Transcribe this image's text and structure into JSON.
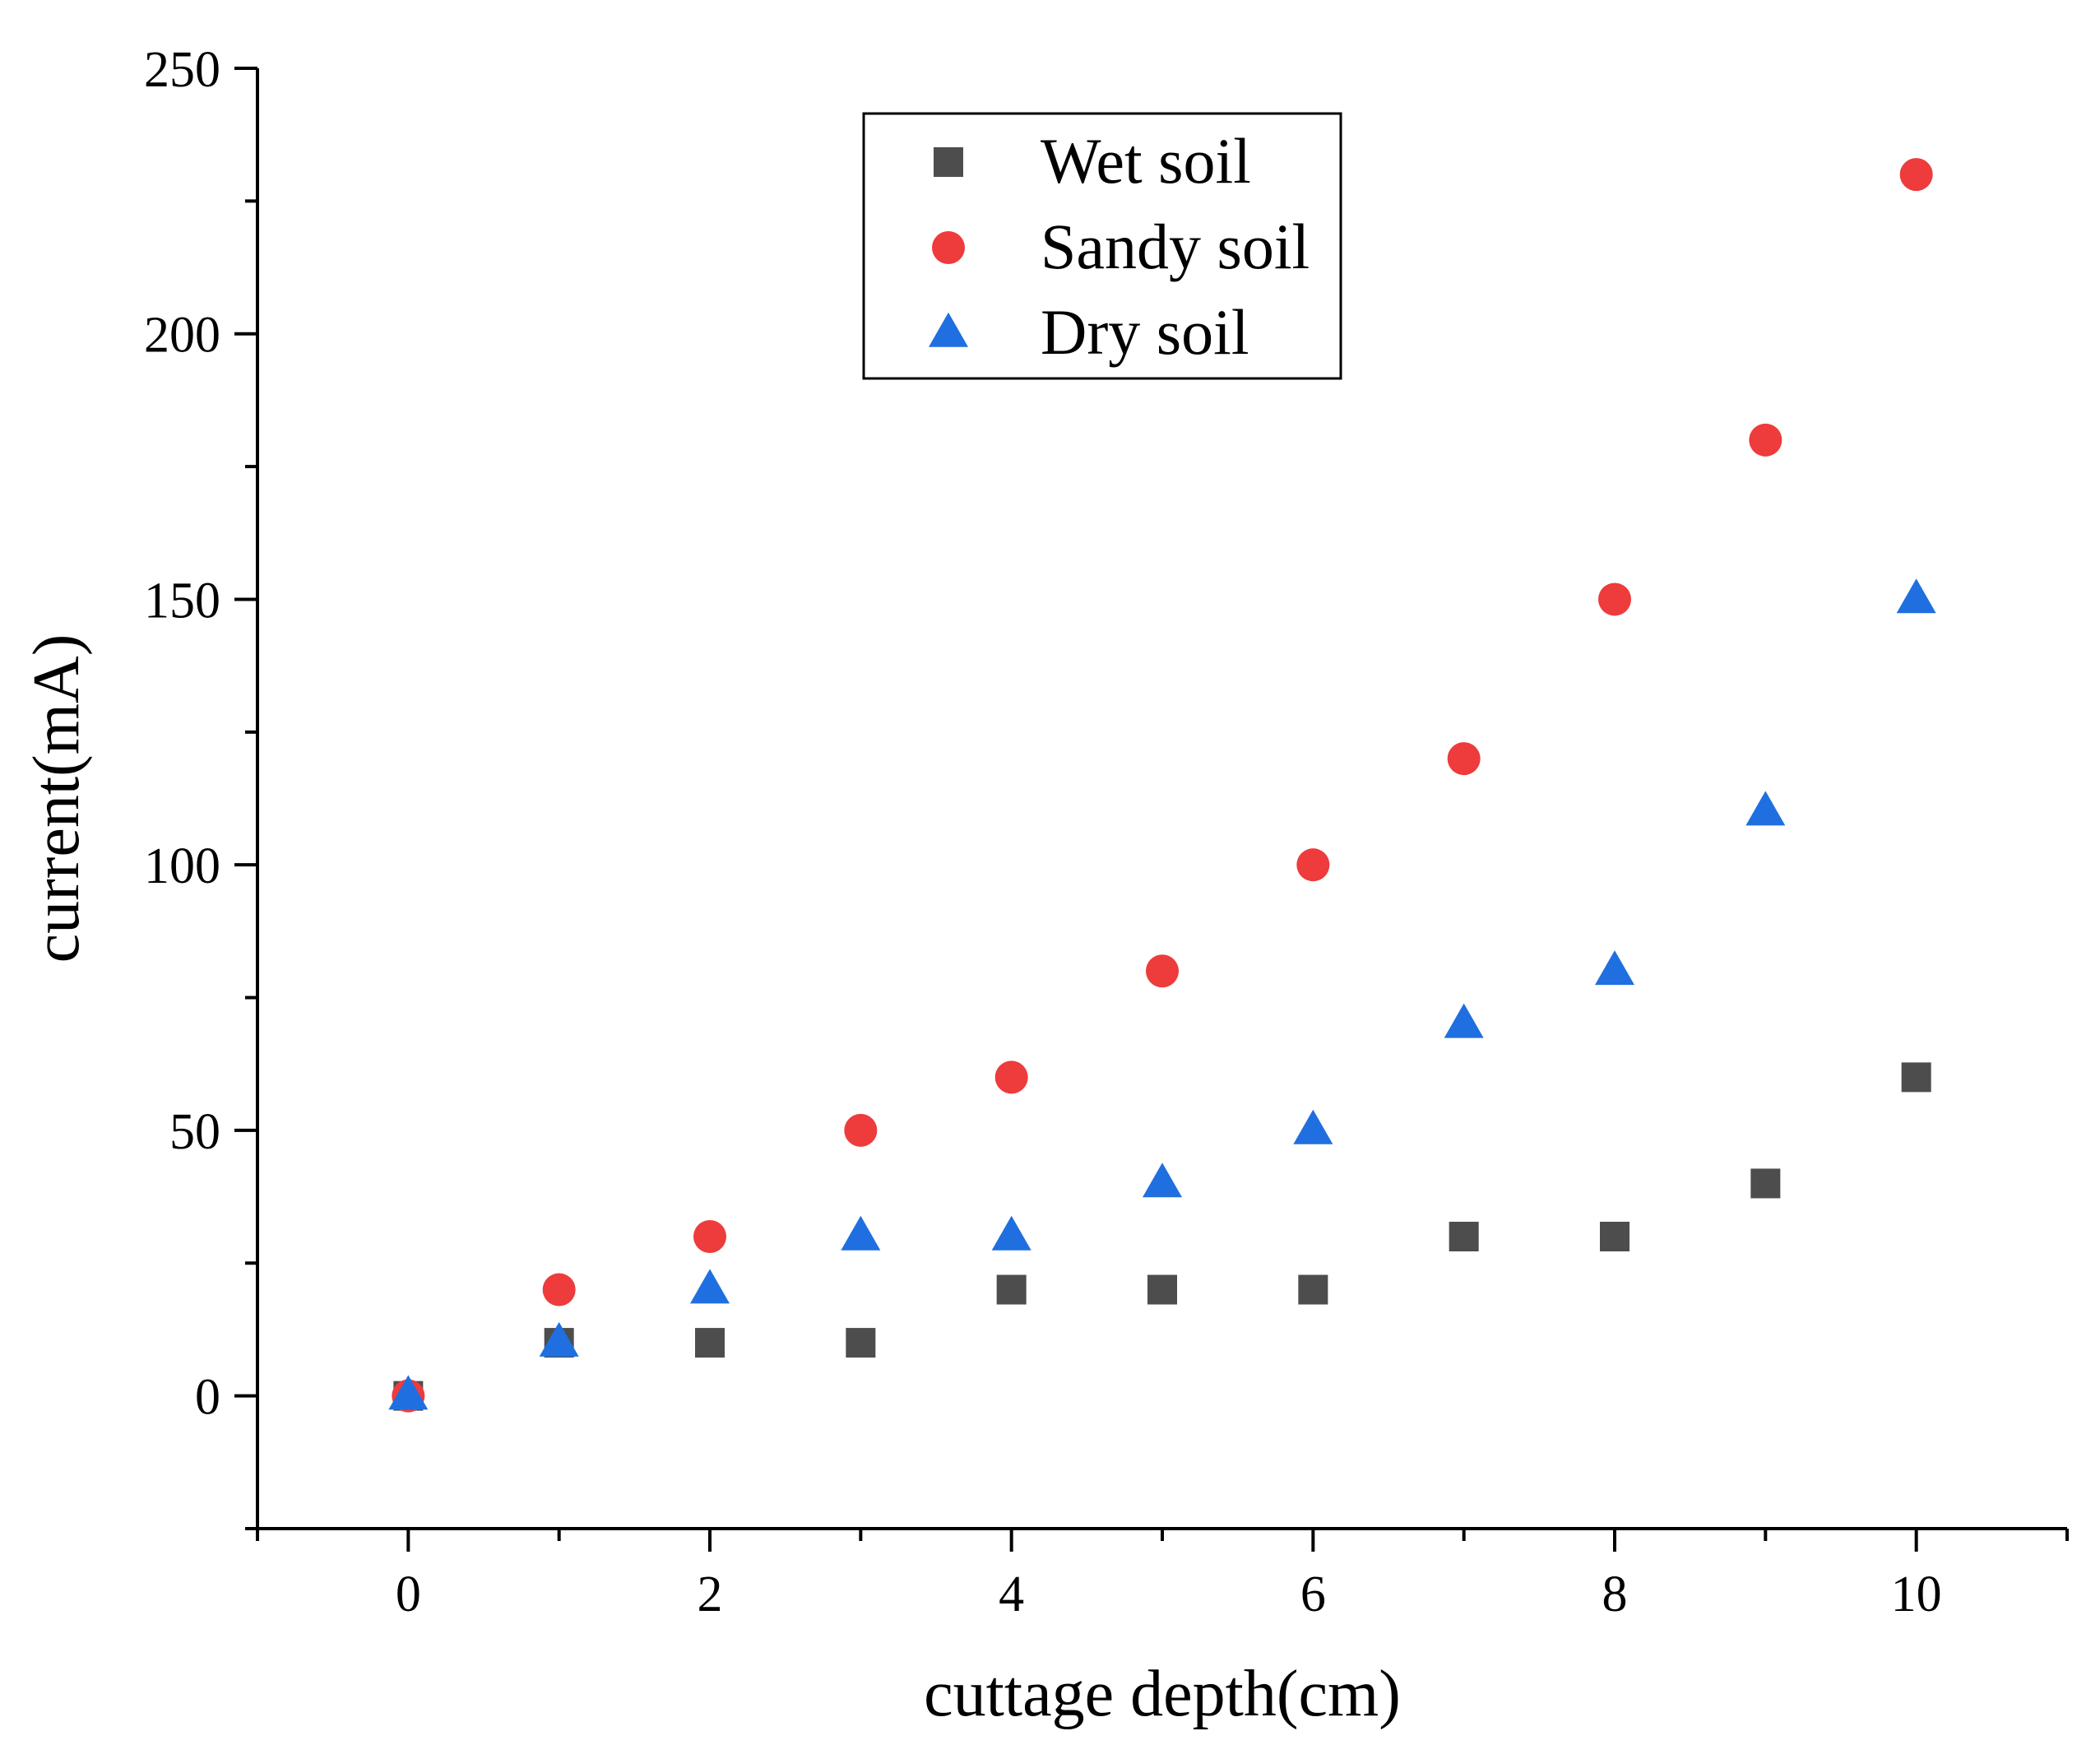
{
  "chart_data": {
    "type": "scatter",
    "title": "",
    "xlabel": "cuttage depth(cm)",
    "ylabel": "current(mA)",
    "xlim": [
      -1,
      11
    ],
    "ylim": [
      -25,
      250
    ],
    "xticks": [
      0,
      2,
      4,
      6,
      8,
      10
    ],
    "xtick_labels": [
      "0",
      "2",
      "4",
      "6",
      "8",
      "10"
    ],
    "yticks": [
      0,
      50,
      100,
      150,
      200,
      250
    ],
    "ytick_labels": [
      "0",
      "50",
      "100",
      "150",
      "200",
      "250"
    ],
    "grid": false,
    "legend_position": "top-center",
    "x": [
      0,
      1,
      2,
      3,
      4,
      5,
      6,
      7,
      8,
      9,
      10
    ],
    "series": [
      {
        "name": "Wet soil",
        "marker": "square",
        "color": "#4d4d4d",
        "values": [
          0,
          10,
          10,
          10,
          20,
          20,
          20,
          30,
          30,
          40,
          60
        ]
      },
      {
        "name": "Sandy soil",
        "marker": "circle",
        "color": "#ee3b3b",
        "values": [
          0,
          20,
          30,
          50,
          60,
          80,
          100,
          120,
          150,
          180,
          230
        ]
      },
      {
        "name": "Dry soil",
        "marker": "triangle",
        "color": "#1f6fe0",
        "values": [
          0,
          10,
          20,
          30,
          30,
          40,
          50,
          70,
          80,
          110,
          150
        ]
      }
    ]
  }
}
